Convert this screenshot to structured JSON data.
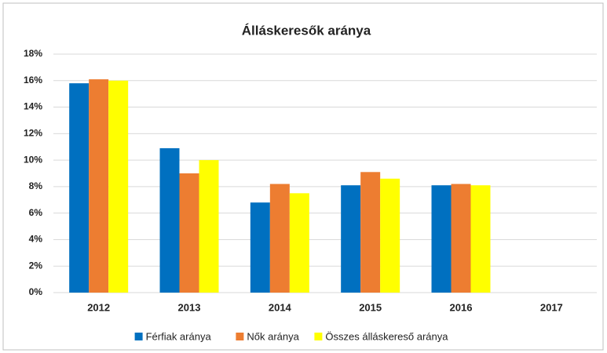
{
  "chart_data": {
    "type": "bar",
    "title": "Álláskeresők aránya",
    "categories": [
      "2012",
      "2013",
      "2014",
      "2015",
      "2016",
      "2017"
    ],
    "series": [
      {
        "name": "Férfiak aránya",
        "color": "#0070c0",
        "values": [
          15.8,
          10.9,
          6.8,
          8.1,
          8.1,
          null
        ]
      },
      {
        "name": "Nők aránya",
        "color": "#ed7d31",
        "values": [
          16.1,
          9.0,
          8.2,
          9.1,
          8.2,
          null
        ]
      },
      {
        "name": "Összes álláskereső aránya",
        "color": "#ffff00",
        "values": [
          16.0,
          10.0,
          7.5,
          8.6,
          8.1,
          null
        ]
      }
    ],
    "ylim": [
      0,
      18
    ],
    "yticks": [
      {
        "value": 0,
        "label": "0%"
      },
      {
        "value": 2,
        "label": "2%"
      },
      {
        "value": 4,
        "label": "4%"
      },
      {
        "value": 6,
        "label": "6%"
      },
      {
        "value": 8,
        "label": "8%"
      },
      {
        "value": 10,
        "label": "10%"
      },
      {
        "value": 12,
        "label": "12%"
      },
      {
        "value": 14,
        "label": "14%"
      },
      {
        "value": 16,
        "label": "16%"
      },
      {
        "value": 18,
        "label": "18%"
      }
    ],
    "grid": true,
    "legend": "bottom"
  }
}
